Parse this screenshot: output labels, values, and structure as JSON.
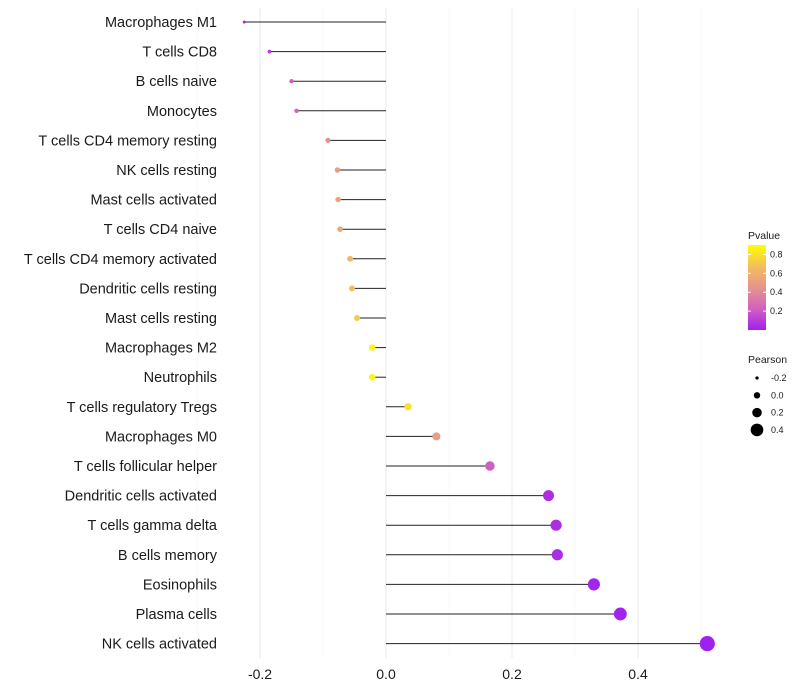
{
  "chart_data": {
    "type": "lollipop",
    "xlim": [
      -0.24,
      0.53
    ],
    "x_ticks": [
      -0.2,
      0.0,
      0.2,
      0.4
    ],
    "x_tick_labels": [
      "-0.2",
      "0.0",
      "0.2",
      "0.4"
    ],
    "grid": true,
    "series": [
      {
        "label": "Macrophages M1",
        "pearson": -0.225,
        "pvalue": 0.05
      },
      {
        "label": "T cells CD8",
        "pearson": -0.185,
        "pvalue": 0.1
      },
      {
        "label": "B cells naive",
        "pearson": -0.15,
        "pvalue": 0.22
      },
      {
        "label": "Monocytes",
        "pearson": -0.142,
        "pvalue": 0.24
      },
      {
        "label": "T cells CD4 memory resting",
        "pearson": -0.092,
        "pvalue": 0.44
      },
      {
        "label": "NK cells resting",
        "pearson": -0.077,
        "pvalue": 0.5
      },
      {
        "label": "Mast cells activated",
        "pearson": -0.076,
        "pvalue": 0.53
      },
      {
        "label": "T cells CD4 naive",
        "pearson": -0.073,
        "pvalue": 0.56
      },
      {
        "label": "T cells CD4 memory activated",
        "pearson": -0.057,
        "pvalue": 0.65
      },
      {
        "label": "Dendritic cells resting",
        "pearson": -0.054,
        "pvalue": 0.66
      },
      {
        "label": "Mast cells resting",
        "pearson": -0.046,
        "pvalue": 0.72
      },
      {
        "label": "Macrophages M2",
        "pearson": -0.022,
        "pvalue": 0.86
      },
      {
        "label": "Neutrophils",
        "pearson": -0.022,
        "pvalue": 0.87
      },
      {
        "label": "T cells regulatory  Tregs ",
        "pearson": 0.035,
        "pvalue": 0.8
      },
      {
        "label": "Macrophages M0",
        "pearson": 0.08,
        "pvalue": 0.5
      },
      {
        "label": "T cells follicular helper",
        "pearson": 0.165,
        "pvalue": 0.22
      },
      {
        "label": "Dendritic cells activated",
        "pearson": 0.258,
        "pvalue": 0.05
      },
      {
        "label": "T cells gamma delta",
        "pearson": 0.27,
        "pvalue": 0.05
      },
      {
        "label": "B cells memory",
        "pearson": 0.272,
        "pvalue": 0.05
      },
      {
        "label": "Eosinophils",
        "pearson": 0.33,
        "pvalue": 0.02
      },
      {
        "label": "Plasma cells",
        "pearson": 0.372,
        "pvalue": 0.01
      },
      {
        "label": "NK cells activated",
        "pearson": 0.51,
        "pvalue": 0.001
      }
    ],
    "legend_pvalue": {
      "title": "Pvalue",
      "ticks": [
        0.8,
        0.6,
        0.4,
        0.2
      ],
      "tick_labels": [
        "0.8",
        "0.6",
        "0.4",
        "0.2"
      ],
      "range": [
        0.0,
        0.9
      ],
      "colors": [
        "#a020f0",
        "#d260c0",
        "#e6948f",
        "#f3be5c",
        "#ffff00"
      ]
    },
    "legend_pearson": {
      "title": "Pearson",
      "ticks": [
        -0.2,
        0.0,
        0.2,
        0.4
      ],
      "tick_labels": [
        "-0.2",
        "0.0",
        "0.2",
        "0.4"
      ]
    }
  }
}
